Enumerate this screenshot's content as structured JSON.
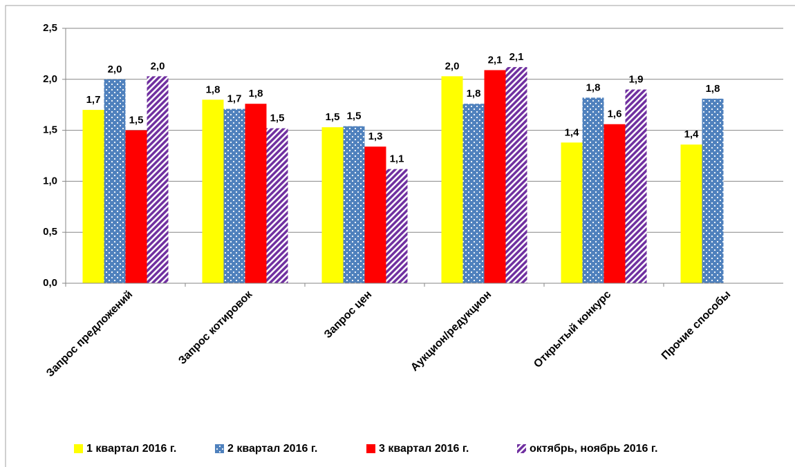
{
  "chart_data": {
    "type": "bar",
    "categories": [
      "Запрос предложений",
      "Запрос котировок",
      "Запрос цен",
      "Аукцион/редукцион",
      "Открытый конкурс",
      "Прочие способы"
    ],
    "series": [
      {
        "name": "1 квартал 2016 г.",
        "color": "#ffff00",
        "pattern": null,
        "values": [
          1.7,
          1.8,
          1.53,
          2.03,
          1.38,
          1.36
        ],
        "value_labels": [
          "1,7",
          "1,8",
          "1,5",
          "2,0",
          "1,4",
          "1,4"
        ]
      },
      {
        "name": "2 квартал 2016 г.",
        "color": "#4f81bd",
        "pattern": "dots",
        "values": [
          2.0,
          1.71,
          1.54,
          1.76,
          1.82,
          1.81
        ],
        "value_labels": [
          "2,0",
          "1,7",
          "1,5",
          "1,8",
          "1,8",
          "1,8"
        ]
      },
      {
        "name": "3 квартал 2016 г.",
        "color": "#ff0000",
        "pattern": null,
        "values": [
          1.5,
          1.76,
          1.34,
          2.09,
          1.56,
          null
        ],
        "value_labels": [
          "1,5",
          "1,8",
          "1,3",
          "2,1",
          "1,6",
          null
        ]
      },
      {
        "name": "октябрь, ноябрь 2016 г.",
        "color": "#7030a0",
        "pattern": "stripes",
        "values": [
          2.03,
          1.52,
          1.12,
          2.12,
          1.9,
          null
        ],
        "value_labels": [
          "2,0",
          "1,5",
          "1,1",
          "2,1",
          "1,9",
          null
        ]
      }
    ],
    "ylim": [
      0,
      2.5
    ],
    "yticks": [
      {
        "value": 0,
        "label": "0,0"
      },
      {
        "value": 0.5,
        "label": "0,5"
      },
      {
        "value": 1,
        "label": "1,0"
      },
      {
        "value": 1.5,
        "label": "1,5"
      },
      {
        "value": 2,
        "label": "2,0"
      },
      {
        "value": 2.5,
        "label": "2,5"
      }
    ],
    "grid": true,
    "legend": "bottom"
  }
}
